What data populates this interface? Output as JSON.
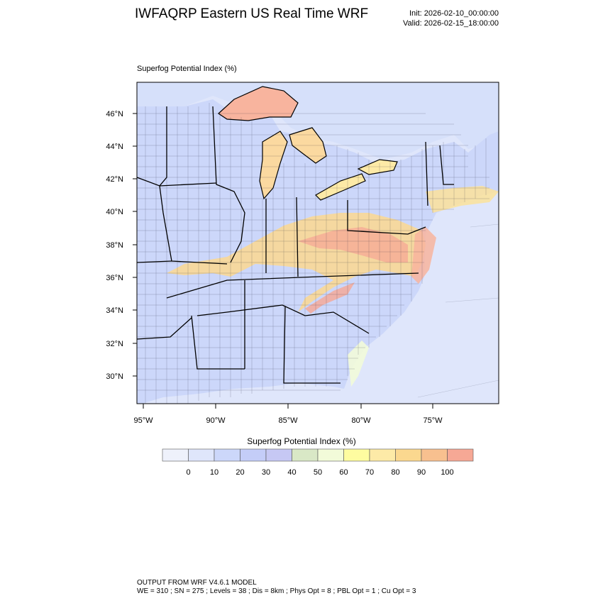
{
  "header": {
    "title": "IWFAQRP Eastern US Real Time WRF",
    "init": "Init: 2026-02-10_00:00:00",
    "valid": "Valid: 2026-02-15_18:00:00"
  },
  "map": {
    "field_label": "Superfog Potential Index   (%)",
    "lat_labels": [
      "46°N",
      "44°N",
      "42°N",
      "40°N",
      "38°N",
      "36°N",
      "34°N",
      "32°N",
      "30°N"
    ],
    "lon_labels": [
      "95°W",
      "90°W",
      "85°W",
      "80°W",
      "75°W"
    ]
  },
  "colorbar": {
    "title": "Superfog Potential Index  (%)",
    "labels": [
      "0",
      "10",
      "20",
      "30",
      "40",
      "50",
      "60",
      "70",
      "80",
      "90",
      "100"
    ],
    "colors": [
      "#eef1fb",
      "#dfe6fb",
      "#ccd7fa",
      "#c4cdf8",
      "#c6c8f4",
      "#d9e8c6",
      "#f2fbd9",
      "#fefca0",
      "#fdeaa7",
      "#fbd88f",
      "#f8c08f",
      "#f6a895"
    ]
  },
  "footer": {
    "line1": "OUTPUT FROM WRF V4.6.1 MODEL",
    "line2": "WE = 310 ; SN = 275 ; Levels = 38 ; Dis = 8km ; Phys Opt = 8 ; PBL Opt = 1 ; Cu Opt = 3"
  }
}
